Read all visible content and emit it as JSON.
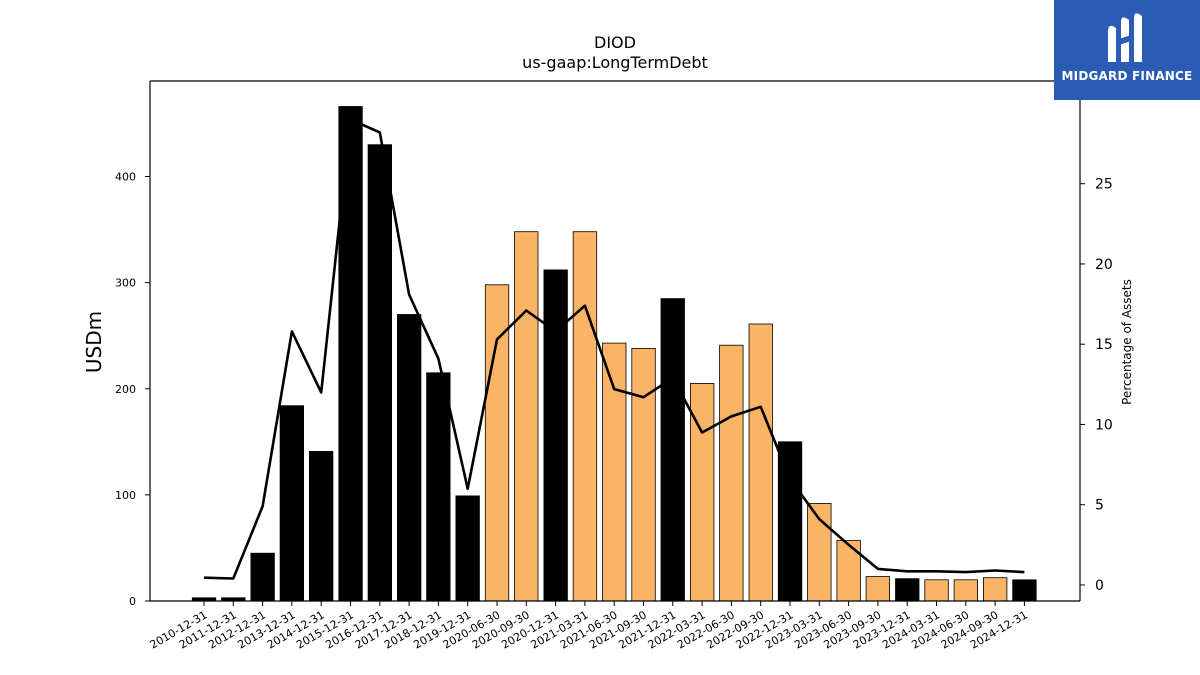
{
  "chart_data": {
    "type": "bar",
    "title": "DIOD",
    "subtitle": "us-gaap:LongTermDebt",
    "ylabel": "USDm",
    "ylabel_right": "Percentage of Assets",
    "ylim": [
      0,
      490
    ],
    "ylim_right": [
      -1,
      31.4
    ],
    "yticks": [
      0,
      100,
      200,
      300,
      400
    ],
    "yticks_right": [
      0,
      5,
      10,
      15,
      20,
      25
    ],
    "categories": [
      "2010-12-31",
      "2011-12-31",
      "2012-12-31",
      "2013-12-31",
      "2014-12-31",
      "2015-12-31",
      "2016-12-31",
      "2017-12-31",
      "2018-12-31",
      "2019-12-31",
      "2020-06-30",
      "2020-09-30",
      "2020-12-31",
      "2021-03-31",
      "2021-06-30",
      "2021-09-30",
      "2021-12-31",
      "2022-03-31",
      "2022-06-30",
      "2022-09-30",
      "2022-12-31",
      "2023-03-31",
      "2023-06-30",
      "2023-09-30",
      "2023-12-31",
      "2024-03-31",
      "2024-06-30",
      "2024-09-30",
      "2024-12-31"
    ],
    "series": [
      {
        "type": "bar",
        "values": [
          3,
          3,
          45,
          184,
          141,
          466,
          430,
          270,
          215,
          99,
          298,
          348,
          312,
          348,
          243,
          238,
          285,
          205,
          241,
          261,
          150,
          92,
          57,
          23,
          21,
          20,
          20,
          22,
          20
        ],
        "period": [
          "annual",
          "annual",
          "annual",
          "annual",
          "annual",
          "annual",
          "annual",
          "annual",
          "annual",
          "annual",
          "quarterly",
          "quarterly",
          "annual",
          "quarterly",
          "quarterly",
          "quarterly",
          "annual",
          "quarterly",
          "quarterly",
          "quarterly",
          "annual",
          "quarterly",
          "quarterly",
          "quarterly",
          "annual",
          "quarterly",
          "quarterly",
          "quarterly",
          "annual"
        ]
      },
      {
        "type": "line",
        "axis": "right",
        "values": [
          0.45,
          0.4,
          4.9,
          15.8,
          12.0,
          29.0,
          28.2,
          18.1,
          14.1,
          6.0,
          15.3,
          17.1,
          15.8,
          17.4,
          12.2,
          11.7,
          12.9,
          9.5,
          10.5,
          11.1,
          6.6,
          4.1,
          2.5,
          1.0,
          0.85,
          0.85,
          0.8,
          0.9,
          0.8
        ]
      }
    ],
    "colors": {
      "annual": "#000000",
      "quarterly": "#fbb366",
      "line": "#000000"
    },
    "grid": false,
    "legend": "none"
  },
  "logo": {
    "text": "MIDGARD FINANCE",
    "background": "#2a5bb5"
  }
}
